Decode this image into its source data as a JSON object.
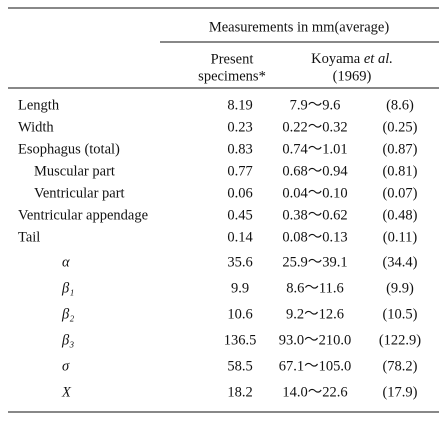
{
  "table": {
    "header": {
      "group": "Measurements in mm(average)",
      "present": [
        "Present",
        "specimens*"
      ],
      "koyama": {
        "author": "Koyama",
        "etal": "et al.",
        "year": "(1969)"
      }
    },
    "rows": [
      {
        "label": "Length",
        "present": "8.19",
        "range": "7.9～9.6",
        "average": "(8.6)"
      },
      {
        "label": "Width",
        "present": "0.23",
        "range": "0.22～0.32",
        "average": "(0.25)"
      },
      {
        "label": "Esophagus (total)",
        "present": "0.83",
        "range": "0.74～1.01",
        "average": "(0.87)"
      },
      {
        "label": "Muscular part",
        "present": "0.77",
        "range": "0.68～0.94",
        "average": "(0.81)"
      },
      {
        "label": "Ventricular part",
        "present": "0.06",
        "range": "0.04～0.10",
        "average": "(0.07)"
      },
      {
        "label": "Ventricular appendage",
        "present": "0.45",
        "range": "0.38～0.62",
        "average": "(0.48)"
      },
      {
        "label": "Tail",
        "present": "0.14",
        "range": "0.08～0.13",
        "average": "(0.11)"
      },
      {
        "label": "α",
        "present": "35.6",
        "range": "25.9～39.1",
        "average": "(34.4)"
      },
      {
        "label": "β₁",
        "present": "9.9",
        "range": "8.6～11.6",
        "average": "(9.9)"
      },
      {
        "label": "β₂",
        "present": "10.6",
        "range": "9.2～12.6",
        "average": "(10.5)"
      },
      {
        "label": "β₃",
        "present": "136.5",
        "range": "93.0～210.0",
        "average": "(122.9)"
      },
      {
        "label": "σ",
        "present": "58.5",
        "range": "67.1～105.0",
        "average": "(78.2)"
      },
      {
        "label": "X",
        "present": "18.2",
        "range": "14.0～22.6",
        "average": "(17.9)"
      }
    ]
  }
}
